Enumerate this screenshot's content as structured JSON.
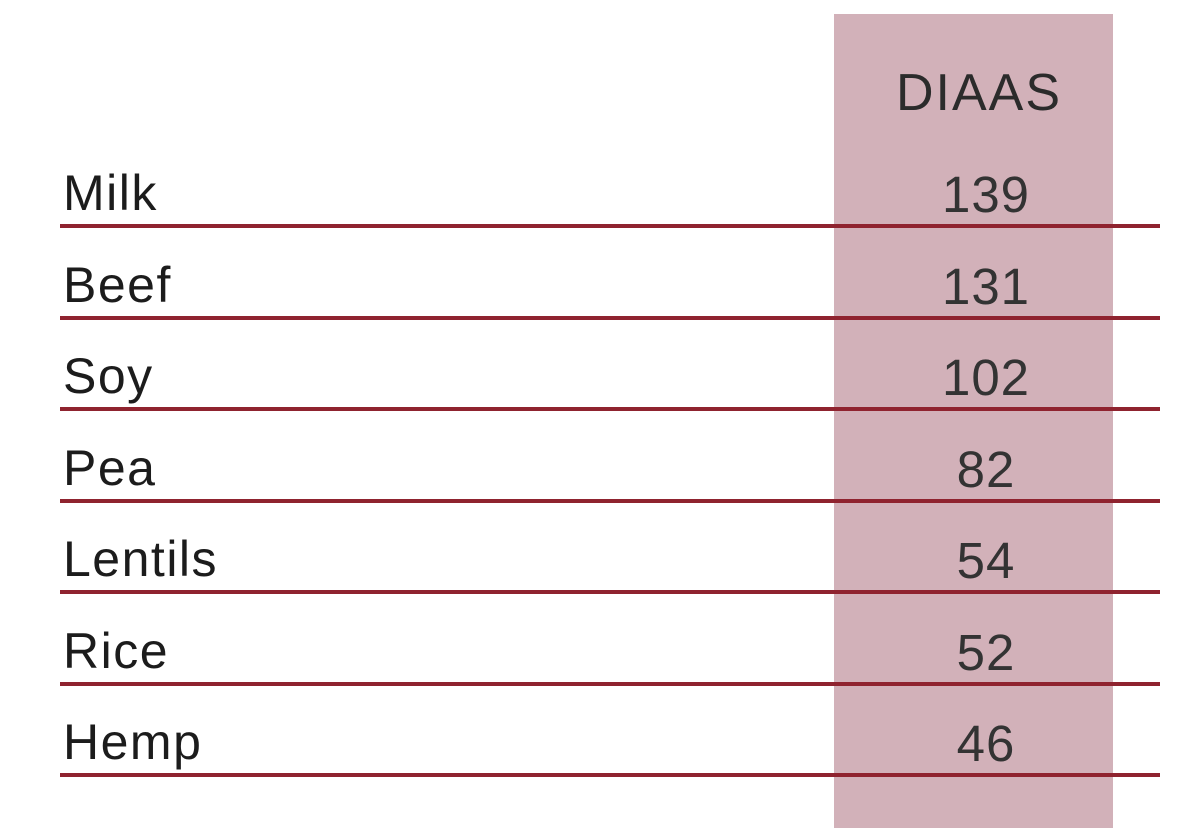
{
  "chart_data": {
    "type": "table",
    "header": "DIAAS",
    "categories": [
      "Milk",
      "Beef",
      "Soy",
      "Pea",
      "Lentils",
      "Rice",
      "Hemp"
    ],
    "values": [
      139,
      131,
      102,
      82,
      54,
      52,
      46
    ],
    "layout": {
      "value_column_highlighted": true,
      "row_rules": true
    }
  },
  "colors": {
    "background": "#ffffff",
    "highlight": "#d2b1b9",
    "rule": "#8f232f",
    "label_text": "#1c1c1c",
    "value_text": "#333333",
    "header_text": "#2b2b2b"
  }
}
